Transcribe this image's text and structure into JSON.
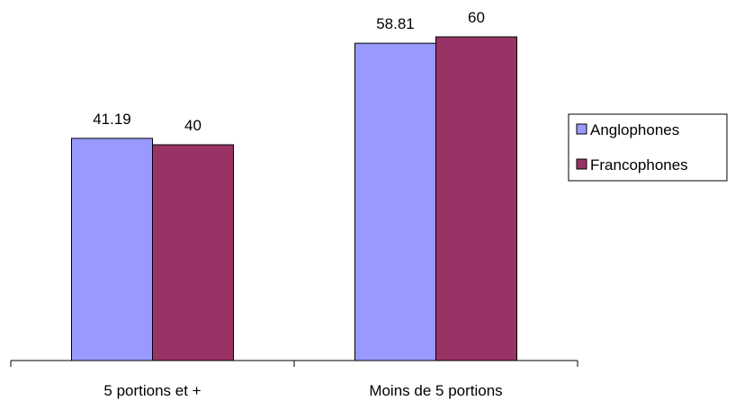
{
  "chart_data": {
    "type": "bar",
    "categories": [
      "5 portions et +",
      "Moins de 5 portions"
    ],
    "series": [
      {
        "name": "Anglophones",
        "values": [
          41.19,
          58.81
        ],
        "color": "#9999ff"
      },
      {
        "name": "Francophones",
        "values": [
          40,
          60
        ],
        "color": "#993366"
      }
    ],
    "data_labels": [
      [
        "41.19",
        "58.81"
      ],
      [
        "40",
        "60"
      ]
    ],
    "ylim": [
      0,
      70
    ],
    "grid": false,
    "legend_position": "right"
  }
}
